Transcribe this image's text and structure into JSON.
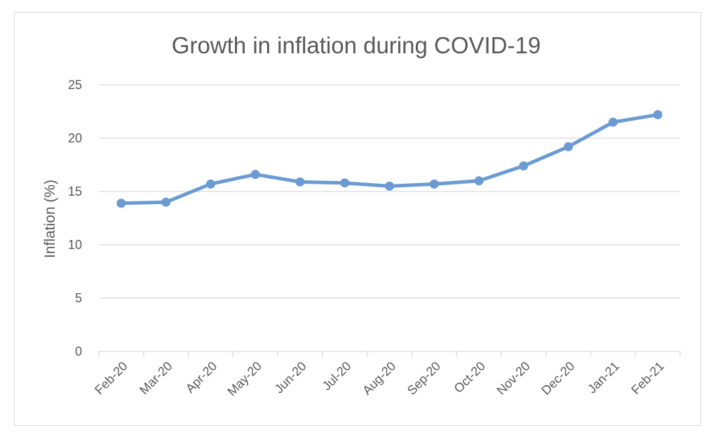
{
  "chart_data": {
    "type": "line",
    "title": "Growth in inflation during COVID-19",
    "xlabel": "",
    "ylabel": "Inflation (%)",
    "categories": [
      "Feb-20",
      "Mar-20",
      "Apr-20",
      "May-20",
      "Jun-20",
      "Jul-20",
      "Aug-20",
      "Sep-20",
      "Oct-20",
      "Nov-20",
      "Dec-20",
      "Jan-21",
      "Feb-21"
    ],
    "series": [
      {
        "values": [
          13.9,
          14.0,
          15.7,
          16.6,
          15.9,
          15.8,
          15.5,
          15.7,
          16.0,
          17.4,
          19.2,
          21.5,
          22.2
        ]
      }
    ],
    "ylim": [
      0,
      25
    ],
    "yticks": [
      "0",
      "5",
      "10",
      "15",
      "20",
      "25"
    ],
    "grid": true,
    "legend": "none",
    "colors": {
      "line": "#6b9bd2",
      "grid": "#d9d9d9",
      "text": "#595959"
    }
  }
}
